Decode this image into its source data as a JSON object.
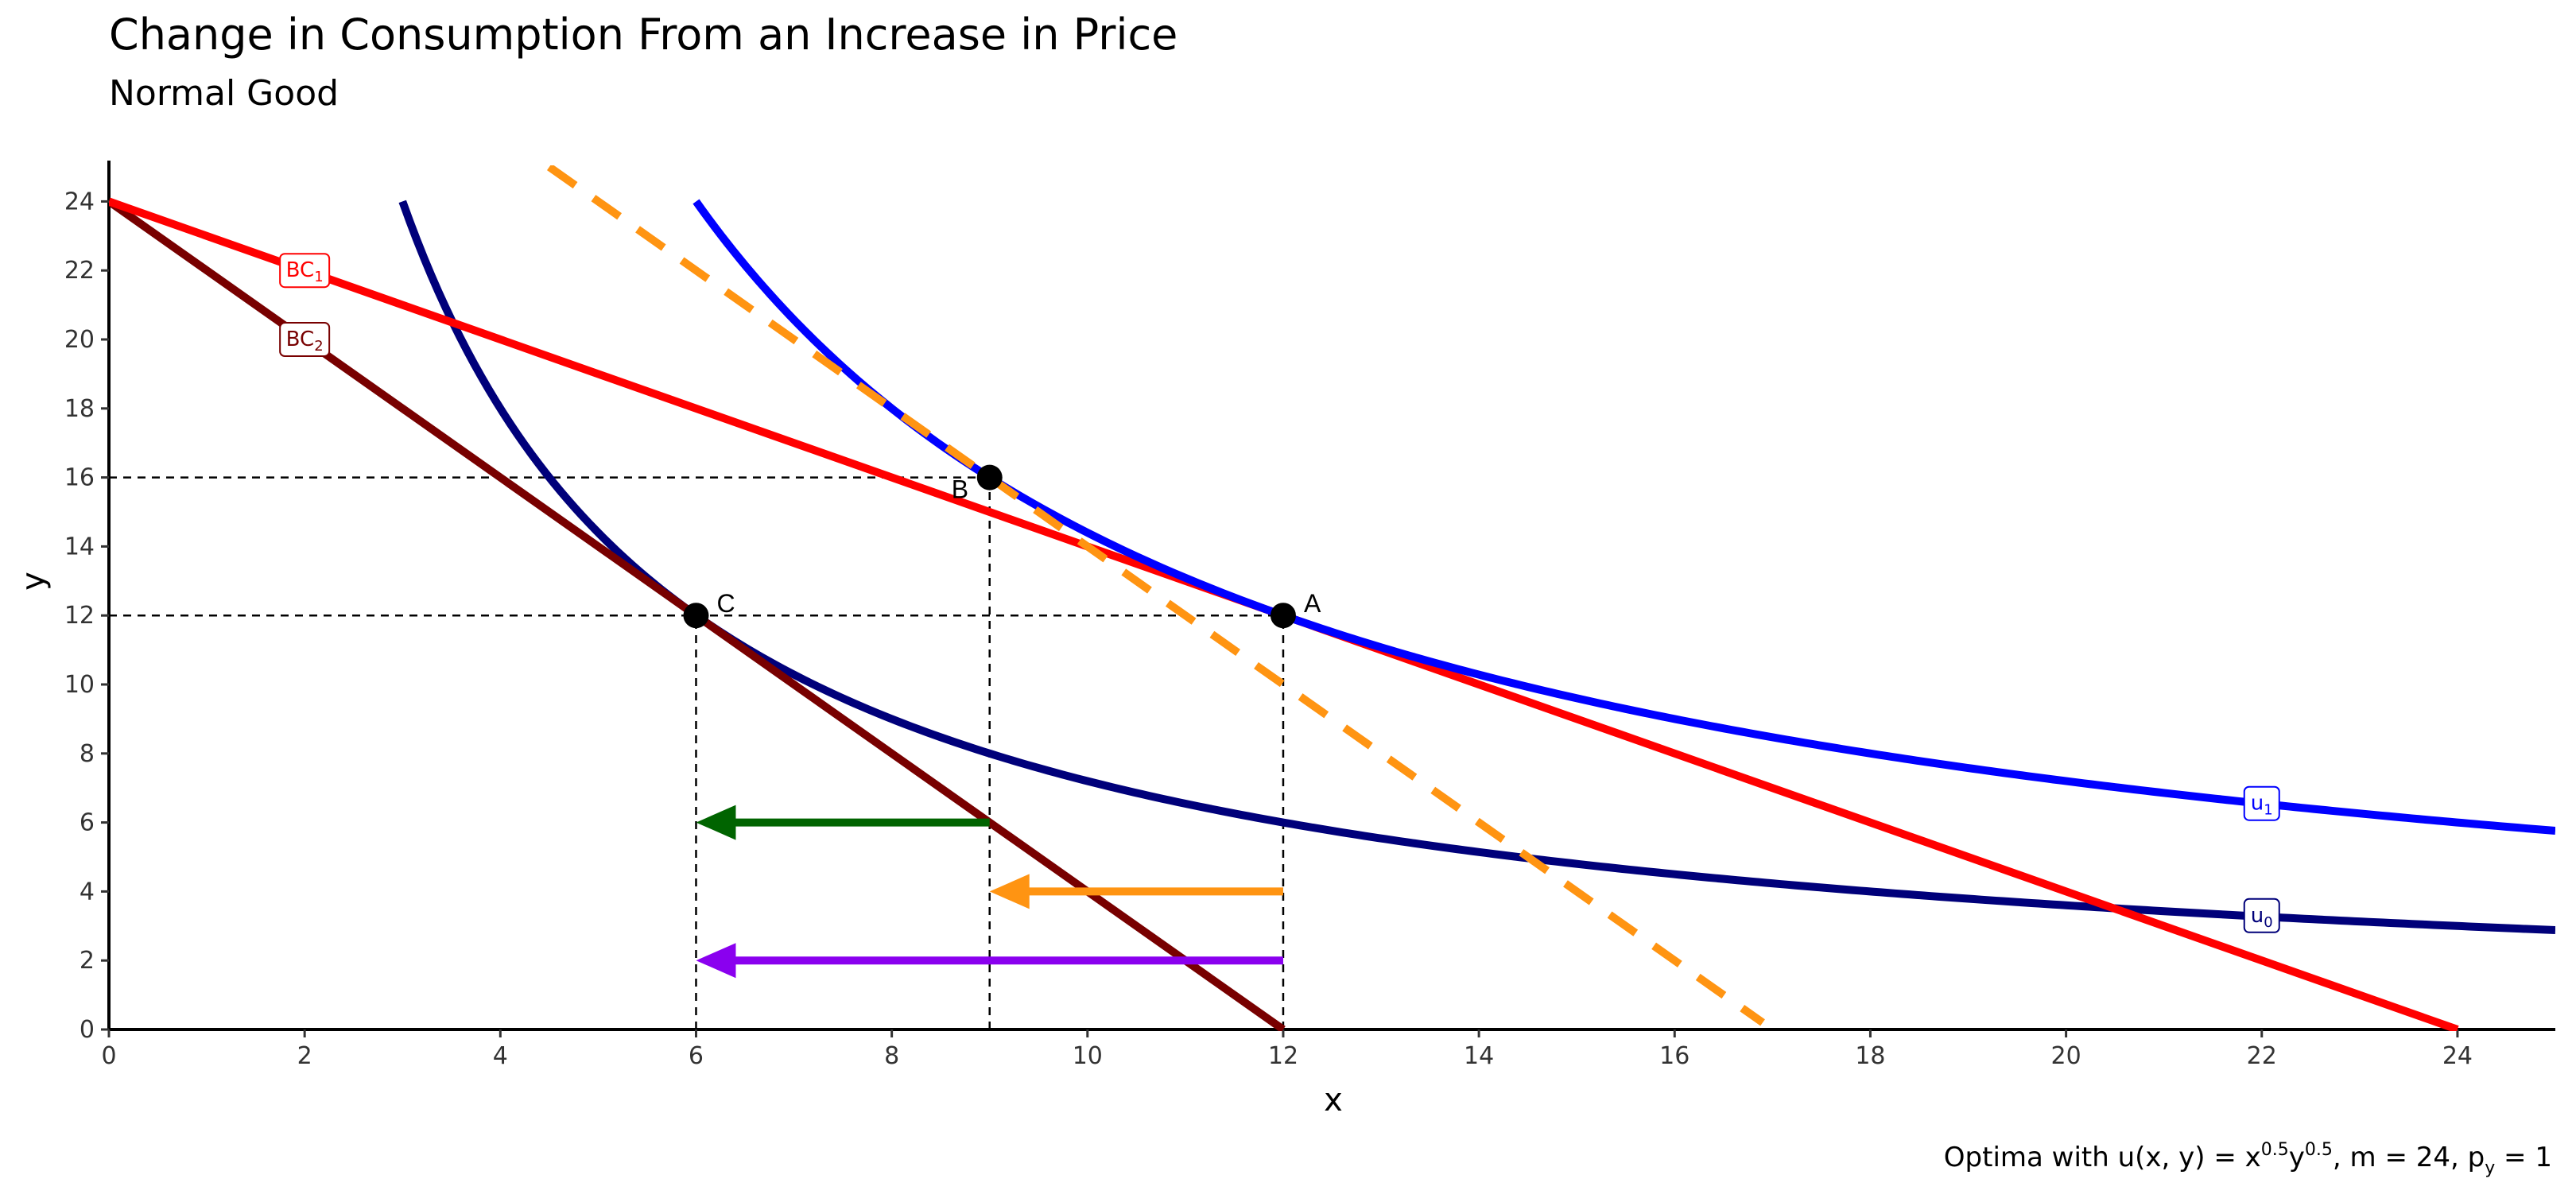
{
  "chart_data": {
    "type": "line",
    "title": "Change in Consumption From an Increase in Price",
    "subtitle": "Normal Good",
    "xlabel": "x",
    "ylabel": "y",
    "caption": "Optima with u(x, y) = x^0.5 y^0.5, m = 24, p_y = 1",
    "caption_parts": {
      "prefix": "Optima with u",
      "args": "(x, y)",
      "eq": " = x",
      "exp1": "0.5",
      "y": "y",
      "exp2": "0.5",
      "mid": ", m = 24, p",
      "sub": "y",
      "end": " = 1"
    },
    "xlim": [
      0,
      25
    ],
    "ylim": [
      0,
      25
    ],
    "x_ticks": [
      0,
      2,
      4,
      6,
      8,
      10,
      12,
      14,
      16,
      18,
      20,
      22,
      24
    ],
    "y_ticks": [
      0,
      2,
      4,
      6,
      8,
      10,
      12,
      14,
      16,
      18,
      20,
      22,
      24
    ],
    "grid": false,
    "series": [
      {
        "name": "BC1",
        "label_base": "BC",
        "label_sub": "1",
        "kind": "budget",
        "x": [
          0,
          24
        ],
        "y": [
          24,
          0
        ],
        "color": "#ff0000",
        "dashed": false,
        "label_at": [
          2,
          22
        ]
      },
      {
        "name": "BC2",
        "label_base": "BC",
        "label_sub": "2",
        "kind": "budget",
        "x": [
          0,
          12
        ],
        "y": [
          24,
          0
        ],
        "color": "#780000",
        "dashed": false,
        "label_at": [
          2,
          20
        ]
      },
      {
        "kind": "budget",
        "x": [
          4.5,
          16.9
        ],
        "y": [
          25,
          0.2
        ],
        "color": "#ff9412",
        "dashed": true
      },
      {
        "name": "u1",
        "label_base": "u",
        "label_sub": "1",
        "kind": "indifference",
        "k": 144,
        "x_range": [
          6,
          25
        ],
        "color": "#0000ff",
        "label_at": [
          22,
          6.55
        ]
      },
      {
        "name": "u0",
        "label_base": "u",
        "label_sub": "0",
        "kind": "indifference",
        "k": 72,
        "x_range": [
          3,
          25
        ],
        "color": "#00007a",
        "label_at": [
          22,
          3.3
        ]
      }
    ],
    "points": [
      {
        "label": "A",
        "x": 12,
        "y": 12
      },
      {
        "label": "B",
        "x": 9,
        "y": 16
      },
      {
        "label": "C",
        "x": 6,
        "y": 12
      }
    ],
    "guides": [
      {
        "x": [
          0,
          9
        ],
        "y": [
          16,
          16
        ]
      },
      {
        "x": [
          0,
          12
        ],
        "y": [
          12,
          12
        ]
      },
      {
        "x": [
          6,
          6
        ],
        "y": [
          0,
          12
        ]
      },
      {
        "x": [
          9,
          9
        ],
        "y": [
          0,
          16
        ]
      },
      {
        "x": [
          12,
          12
        ],
        "y": [
          0,
          12
        ]
      }
    ],
    "arrows": [
      {
        "name": "income-effect",
        "from": [
          9,
          6
        ],
        "to": [
          6,
          6
        ],
        "color": "#006400"
      },
      {
        "name": "substitution-effect",
        "from": [
          12,
          4
        ],
        "to": [
          9,
          4
        ],
        "color": "#ff9412"
      },
      {
        "name": "total-effect",
        "from": [
          12,
          2
        ],
        "to": [
          6,
          2
        ],
        "color": "#8a00ef"
      }
    ]
  }
}
